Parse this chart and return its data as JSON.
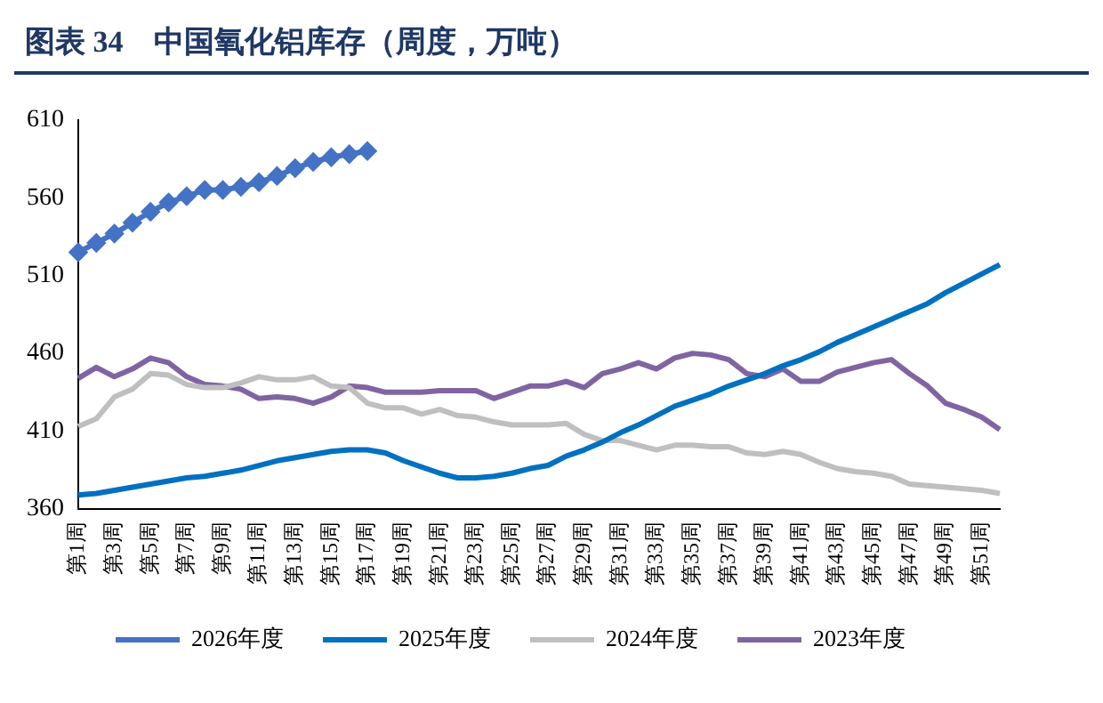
{
  "chart_data": {
    "type": "line",
    "title": "图表 34　中国氧化铝库存（周度，万吨）",
    "categories": [
      "第1周",
      null,
      "第3周",
      null,
      "第5周",
      null,
      "第7周",
      null,
      "第9周",
      null,
      "第11周",
      null,
      "第13周",
      null,
      "第15周",
      null,
      "第17周",
      null,
      "第19周",
      null,
      "第21周",
      null,
      "第23周",
      null,
      "第25周",
      null,
      "第27周",
      null,
      "第29周",
      null,
      "第31周",
      null,
      "第33周",
      null,
      "第35周",
      null,
      "第37周",
      null,
      "第39周",
      null,
      "第41周",
      null,
      "第43周",
      null,
      "第45周",
      null,
      "第47周",
      null,
      "第49周",
      null,
      "第51周",
      null
    ],
    "series": [
      {
        "name": "2026年度",
        "color": "#4472c4",
        "marker": "diamond",
        "values": [
          525,
          531,
          537,
          544,
          551,
          557,
          561,
          565,
          565,
          567,
          570,
          574,
          579,
          583,
          586,
          588,
          590,
          null,
          null,
          null,
          null,
          null,
          null,
          null,
          null,
          null,
          null,
          null,
          null,
          null,
          null,
          null,
          null,
          null,
          null,
          null,
          null,
          null,
          null,
          null,
          null,
          null,
          null,
          null,
          null,
          null,
          null,
          null,
          null,
          null,
          null,
          null
        ]
      },
      {
        "name": "2025年度",
        "color": "#0070c0",
        "values": [
          369,
          370,
          372,
          374,
          376,
          378,
          380,
          381,
          383,
          385,
          388,
          391,
          393,
          395,
          397,
          398,
          398,
          396,
          391,
          387,
          383,
          380,
          380,
          381,
          383,
          386,
          388,
          394,
          398,
          403,
          409,
          414,
          420,
          426,
          430,
          434,
          439,
          443,
          447,
          452,
          456,
          461,
          467,
          472,
          477,
          482,
          487,
          492,
          499,
          505,
          511,
          517
        ]
      },
      {
        "name": "2024年度",
        "color": "#bfbfbf",
        "values": [
          413,
          418,
          432,
          437,
          447,
          446,
          440,
          438,
          438,
          441,
          445,
          443,
          443,
          445,
          439,
          438,
          428,
          425,
          425,
          421,
          424,
          420,
          419,
          416,
          414,
          414,
          414,
          415,
          408,
          404,
          404,
          401,
          398,
          401,
          401,
          400,
          400,
          396,
          395,
          397,
          395,
          390,
          386,
          384,
          383,
          381,
          376,
          375,
          374,
          373,
          372,
          370
        ]
      },
      {
        "name": "2023年度",
        "color": "#8064a2",
        "values": [
          444,
          451,
          445,
          450,
          457,
          454,
          445,
          440,
          439,
          437,
          431,
          432,
          431,
          428,
          432,
          439,
          438,
          435,
          435,
          435,
          436,
          436,
          436,
          431,
          435,
          439,
          439,
          442,
          438,
          447,
          450,
          454,
          450,
          457,
          460,
          459,
          456,
          447,
          445,
          450,
          442,
          442,
          448,
          451,
          454,
          456,
          447,
          439,
          428,
          424,
          419,
          411
        ]
      }
    ],
    "ylim": [
      360,
      610
    ],
    "yticks": [
      360,
      410,
      460,
      510,
      560,
      610
    ],
    "grid": false,
    "legend": "bottom",
    "marker": "none"
  }
}
